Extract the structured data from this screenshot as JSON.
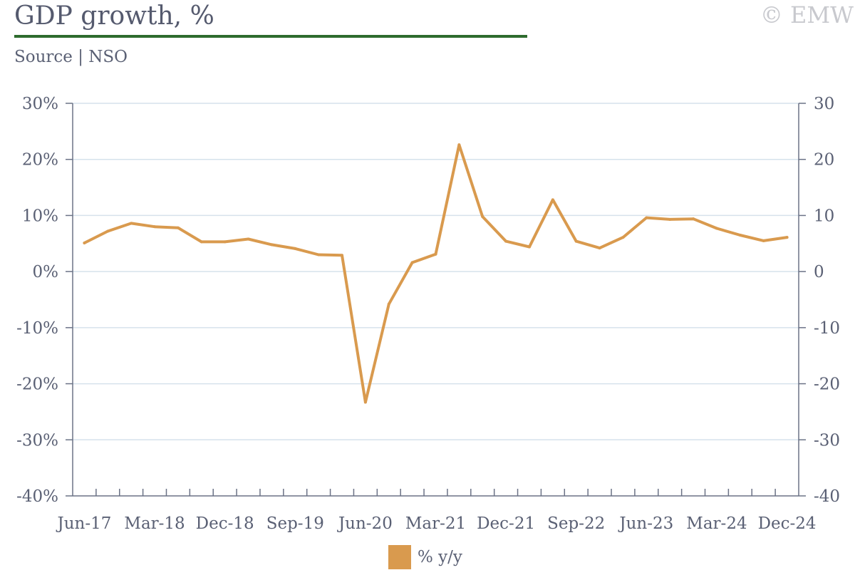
{
  "header": {
    "title": "GDP growth, %",
    "source": "Source | NSO",
    "copyright": "© EMW"
  },
  "chart_data": {
    "type": "line",
    "title": "GDP growth, %",
    "source": "Source | NSO",
    "x": [
      "Jun-17",
      "Sep-17",
      "Dec-17",
      "Mar-18",
      "Jun-18",
      "Sep-18",
      "Dec-18",
      "Mar-19",
      "Jun-19",
      "Sep-19",
      "Dec-19",
      "Mar-20",
      "Jun-20",
      "Sep-20",
      "Dec-20",
      "Mar-21",
      "Jun-21",
      "Sep-21",
      "Dec-21",
      "Mar-22",
      "Jun-22",
      "Sep-22",
      "Dec-22",
      "Mar-23",
      "Jun-23",
      "Sep-23",
      "Dec-23",
      "Mar-24",
      "Jun-24",
      "Sep-24",
      "Dec-24"
    ],
    "x_tick_labels": [
      "Jun-17",
      "Mar-18",
      "Dec-18",
      "Sep-19",
      "Jun-20",
      "Mar-21",
      "Dec-21",
      "Sep-22",
      "Jun-23",
      "Mar-24",
      "Dec-24"
    ],
    "series": [
      {
        "name": "% y/y",
        "color": "#d99a4e",
        "values": [
          5.1,
          7.2,
          8.6,
          8.0,
          7.8,
          5.3,
          5.3,
          5.8,
          4.8,
          4.1,
          3.0,
          2.9,
          -23.3,
          -5.8,
          1.6,
          3.1,
          22.6,
          9.8,
          5.4,
          4.4,
          12.8,
          5.4,
          4.2,
          6.1,
          9.6,
          9.3,
          9.4,
          7.7,
          6.5,
          5.5,
          6.1
        ]
      }
    ],
    "ylim": [
      -40,
      30
    ],
    "y_ticks": [
      30,
      20,
      10,
      0,
      -10,
      -20,
      -30,
      -40
    ],
    "y_left_labels": [
      "30%",
      "20%",
      "10%",
      "0%",
      "-10%",
      "-20%",
      "-30%",
      "-40%"
    ],
    "y_right_labels": [
      "30",
      "20",
      "10",
      "0",
      "-10",
      "-20",
      "-30",
      "-40"
    ],
    "grid": true,
    "gridline_color": "#d6e2ec",
    "axis_color": "#6b7286",
    "legend_position": "bottom-center"
  }
}
